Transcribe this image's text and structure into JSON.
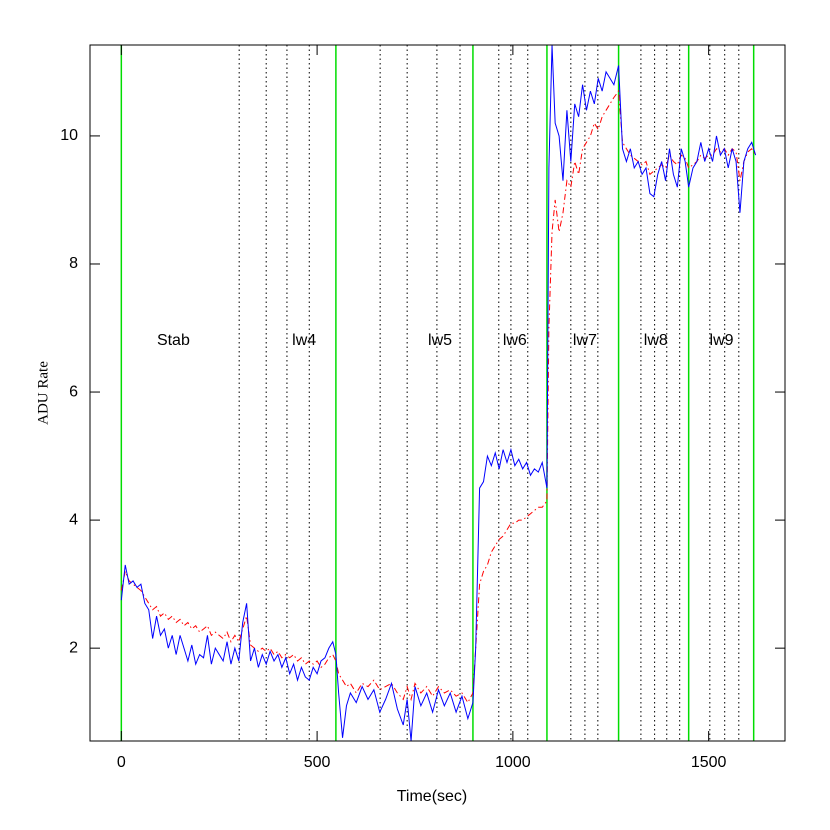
{
  "chart_data": {
    "type": "line",
    "xlabel": "Time(sec)",
    "ylabel": "ADU Rate",
    "xlim": [
      -80,
      1695
    ],
    "ylim": [
      0.55,
      11.42
    ],
    "xticks": [
      0,
      500,
      1000,
      1500
    ],
    "yticks": [
      2,
      4,
      6,
      8,
      10
    ],
    "x": [
      0,
      10,
      20,
      30,
      40,
      50,
      60,
      70,
      80,
      90,
      100,
      110,
      120,
      130,
      140,
      150,
      160,
      170,
      180,
      190,
      200,
      210,
      220,
      230,
      240,
      250,
      260,
      270,
      280,
      290,
      300,
      310,
      320,
      330,
      340,
      350,
      360,
      370,
      380,
      390,
      400,
      410,
      420,
      430,
      440,
      450,
      460,
      470,
      480,
      490,
      500,
      510,
      520,
      530,
      540,
      548,
      555,
      565,
      575,
      585,
      600,
      615,
      630,
      645,
      660,
      675,
      690,
      705,
      720,
      730,
      740,
      750,
      765,
      780,
      795,
      810,
      825,
      840,
      855,
      870,
      885,
      898,
      905,
      915,
      925,
      935,
      945,
      955,
      965,
      975,
      985,
      995,
      1005,
      1015,
      1025,
      1035,
      1045,
      1055,
      1065,
      1075,
      1087,
      1092,
      1100,
      1108,
      1118,
      1128,
      1138,
      1148,
      1158,
      1168,
      1178,
      1188,
      1198,
      1208,
      1218,
      1228,
      1238,
      1248,
      1258,
      1270,
      1280,
      1290,
      1300,
      1310,
      1320,
      1330,
      1340,
      1350,
      1360,
      1370,
      1380,
      1390,
      1400,
      1410,
      1420,
      1430,
      1440,
      1449,
      1460,
      1470,
      1480,
      1490,
      1500,
      1510,
      1520,
      1530,
      1540,
      1550,
      1560,
      1570,
      1580,
      1590,
      1600,
      1610,
      1620
    ],
    "series": [
      {
        "color": "#0000ff",
        "dash": "solid",
        "values": [
          2.75,
          3.3,
          3.0,
          3.05,
          2.95,
          3.0,
          2.7,
          2.6,
          2.15,
          2.5,
          2.2,
          2.3,
          2.0,
          2.2,
          1.9,
          2.2,
          2.0,
          1.8,
          2.05,
          1.75,
          1.9,
          1.85,
          2.2,
          1.75,
          2.0,
          1.9,
          1.8,
          2.1,
          1.75,
          2.0,
          1.8,
          2.4,
          2.7,
          1.8,
          2.0,
          1.7,
          1.9,
          1.75,
          1.95,
          1.8,
          1.9,
          1.7,
          1.85,
          1.6,
          1.75,
          1.5,
          1.7,
          1.55,
          1.5,
          1.7,
          1.6,
          1.8,
          1.85,
          2.0,
          2.1,
          1.9,
          1.3,
          0.6,
          1.1,
          1.3,
          1.15,
          1.4,
          1.2,
          1.35,
          1.0,
          1.2,
          1.45,
          1.05,
          0.8,
          1.2,
          0.55,
          1.4,
          1.1,
          1.3,
          1.0,
          1.35,
          1.1,
          1.3,
          1.0,
          1.25,
          0.9,
          1.15,
          2.0,
          4.5,
          4.6,
          5.0,
          4.85,
          5.05,
          4.8,
          5.1,
          4.9,
          5.1,
          4.85,
          4.95,
          4.8,
          4.9,
          4.7,
          4.8,
          4.75,
          4.9,
          4.5,
          9.5,
          11.42,
          10.2,
          10.0,
          9.3,
          10.4,
          9.6,
          10.5,
          10.3,
          10.8,
          10.4,
          10.7,
          10.5,
          10.9,
          10.7,
          11.0,
          10.9,
          10.8,
          11.1,
          9.8,
          9.6,
          9.8,
          9.5,
          9.6,
          9.4,
          9.5,
          9.1,
          9.05,
          9.4,
          9.6,
          9.3,
          9.8,
          9.4,
          9.2,
          9.8,
          9.6,
          9.2,
          9.5,
          9.6,
          9.9,
          9.6,
          9.8,
          9.6,
          10.0,
          9.7,
          9.8,
          9.5,
          9.8,
          9.6,
          8.8,
          9.6,
          9.8,
          9.9,
          9.7
        ]
      },
      {
        "color": "#ff0000",
        "dash": "dashdot",
        "values": [
          2.9,
          3.2,
          3.05,
          3.0,
          2.95,
          2.9,
          2.8,
          2.7,
          2.6,
          2.65,
          2.5,
          2.55,
          2.45,
          2.5,
          2.4,
          2.45,
          2.35,
          2.4,
          2.3,
          2.35,
          2.25,
          2.3,
          2.35,
          2.2,
          2.25,
          2.2,
          2.15,
          2.25,
          2.1,
          2.2,
          2.1,
          2.3,
          2.5,
          2.05,
          2.0,
          1.95,
          2.0,
          1.95,
          2.0,
          1.9,
          1.95,
          1.85,
          1.9,
          1.85,
          1.9,
          1.8,
          1.85,
          1.75,
          1.8,
          1.75,
          1.8,
          1.7,
          1.75,
          1.85,
          1.9,
          1.8,
          1.6,
          1.5,
          1.4,
          1.45,
          1.3,
          1.45,
          1.4,
          1.5,
          1.35,
          1.4,
          1.45,
          1.3,
          1.2,
          1.4,
          1.2,
          1.45,
          1.3,
          1.4,
          1.25,
          1.4,
          1.3,
          1.35,
          1.25,
          1.3,
          1.15,
          1.3,
          2.0,
          3.0,
          3.2,
          3.3,
          3.5,
          3.6,
          3.7,
          3.75,
          3.85,
          3.95,
          3.95,
          4.0,
          4.0,
          4.05,
          4.1,
          4.15,
          4.2,
          4.2,
          4.3,
          7.0,
          8.5,
          9.0,
          8.5,
          8.8,
          9.3,
          9.2,
          9.6,
          9.4,
          9.8,
          9.9,
          10.0,
          10.2,
          10.1,
          10.3,
          10.4,
          10.5,
          10.6,
          10.7,
          9.9,
          9.8,
          9.7,
          9.65,
          9.6,
          9.55,
          9.6,
          9.4,
          9.45,
          9.5,
          9.55,
          9.5,
          9.7,
          9.6,
          9.55,
          9.7,
          9.65,
          9.5,
          9.55,
          9.6,
          9.7,
          9.65,
          9.7,
          9.7,
          9.8,
          9.75,
          9.8,
          9.7,
          9.8,
          9.75,
          9.3,
          9.6,
          9.75,
          9.8,
          9.7
        ]
      }
    ],
    "green_lines": {
      "color": "#00dd00",
      "x": [
        0,
        548,
        898,
        1087,
        1270,
        1449,
        1615
      ]
    },
    "dotted_lines": {
      "color": "#000000",
      "x": [
        301,
        370,
        423,
        480,
        661,
        730,
        806,
        865,
        964,
        995,
        1038,
        1148,
        1184,
        1217,
        1327,
        1362,
        1393,
        1426,
        1503,
        1541,
        1577
      ]
    },
    "annotations": [
      {
        "text": "Stab",
        "x": 133,
        "y": 6.8
      },
      {
        "text": "lw4",
        "x": 467,
        "y": 6.8
      },
      {
        "text": "lw5",
        "x": 814,
        "y": 6.8
      },
      {
        "text": "lw6",
        "x": 1005,
        "y": 6.8
      },
      {
        "text": "lw7",
        "x": 1184,
        "y": 6.8
      },
      {
        "text": "lw8",
        "x": 1365,
        "y": 6.8
      },
      {
        "text": "lw9",
        "x": 1533,
        "y": 6.8
      }
    ]
  }
}
